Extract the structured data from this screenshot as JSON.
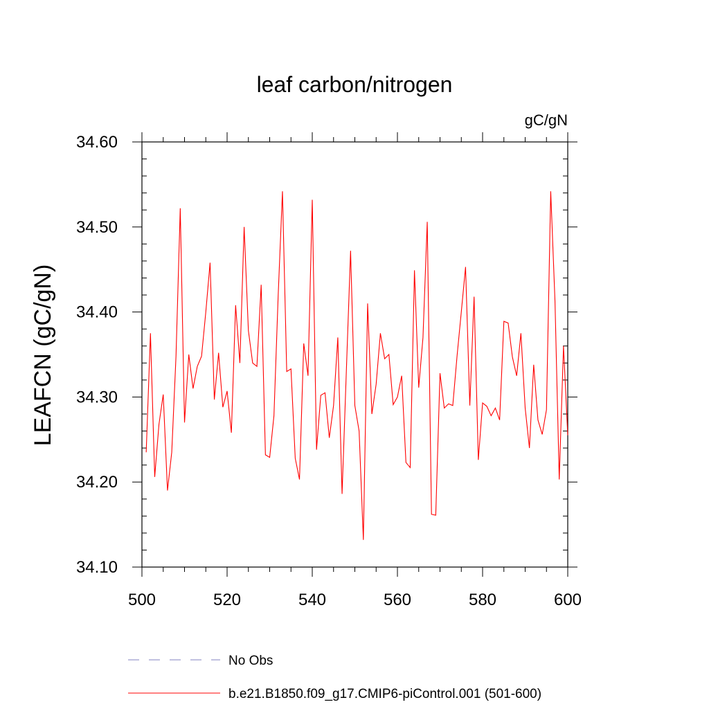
{
  "chart_data": {
    "type": "line",
    "title": "leaf carbon/nitrogen",
    "units_label": "gC/gN",
    "ylabel": "LEAFCN  (gC/gN)",
    "xlabel": "",
    "xlim": [
      500,
      600
    ],
    "ylim": [
      34.1,
      34.6
    ],
    "x_ticks": [
      "500",
      "520",
      "540",
      "560",
      "580",
      "600"
    ],
    "y_ticks": [
      "34.10",
      "34.20",
      "34.30",
      "34.40",
      "34.50",
      "34.60"
    ],
    "grid": false,
    "series": [
      {
        "name": "b.e21.B1850.f09_g17.CMIP6-piControl.001 (501-600)",
        "color": "#ff0000",
        "x_start": 501,
        "values": [
          34.235,
          34.375,
          34.206,
          34.268,
          34.303,
          34.19,
          34.235,
          34.348,
          34.522,
          34.27,
          34.35,
          34.31,
          34.336,
          34.348,
          34.4,
          34.458,
          34.297,
          34.352,
          34.288,
          34.307,
          34.258,
          34.408,
          34.34,
          34.5,
          34.378,
          34.34,
          34.336,
          34.432,
          34.232,
          34.229,
          34.278,
          34.42,
          34.542,
          34.33,
          34.333,
          34.228,
          34.203,
          34.363,
          34.325,
          34.532,
          34.238,
          34.302,
          34.305,
          34.252,
          34.29,
          34.37,
          34.186,
          34.33,
          34.472,
          34.29,
          34.26,
          34.132,
          34.41,
          34.28,
          34.315,
          34.375,
          34.345,
          34.35,
          34.291,
          34.3,
          34.325,
          34.223,
          34.217,
          34.449,
          34.311,
          34.37,
          34.506,
          34.162,
          34.161,
          34.328,
          34.287,
          34.292,
          34.29,
          34.348,
          34.4,
          34.453,
          34.29,
          34.418,
          34.226,
          34.293,
          34.289,
          34.278,
          34.287,
          34.273,
          34.389,
          34.387,
          34.347,
          34.325,
          34.375,
          34.287,
          34.24,
          34.338,
          34.273,
          34.256,
          34.285,
          34.542,
          34.413,
          34.203,
          34.36,
          34.255
        ]
      }
    ],
    "legend": {
      "placement": "bottom",
      "entries": [
        {
          "label": "No Obs",
          "color": "#8080c0",
          "style": "dashed"
        },
        {
          "label": "b.e21.B1850.f09_g17.CMIP6-piControl.001 (501-600)",
          "color": "#ff0000",
          "style": "solid"
        }
      ]
    }
  }
}
